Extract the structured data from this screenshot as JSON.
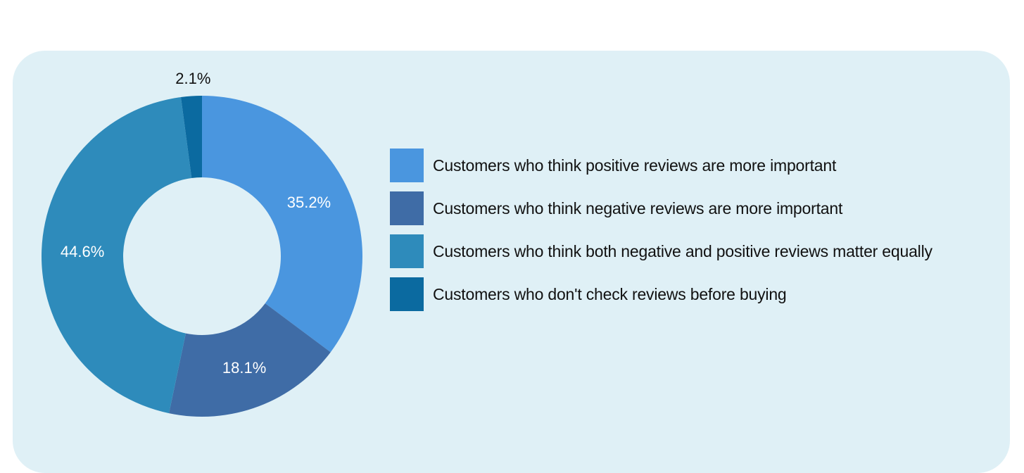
{
  "chart_data": {
    "type": "pie",
    "subtype": "donut",
    "title": "",
    "categories": [
      "Customers who think positive reviews are more important",
      "Customers who think negative reviews are more important",
      "Customers who think both negative and positive reviews matter equally",
      "Customers who don't check reviews before buying"
    ],
    "values": [
      35.2,
      18.1,
      44.6,
      2.1
    ],
    "labels": [
      "35.2%",
      "18.1%",
      "44.6%",
      "2.1%"
    ],
    "colors": [
      "#4a96df",
      "#3f6ca6",
      "#2e8bbb",
      "#0b6aa0"
    ],
    "legend_position": "right",
    "start_angle": "12 o'clock, clockwise"
  },
  "style": {
    "panel_background": "#dff0f6",
    "label_inside_color": "#ffffff",
    "label_outside_color": "#111111"
  },
  "legend": {
    "items": [
      {
        "label": "Customers who think positive reviews are more important",
        "color": "#4a96df"
      },
      {
        "label": "Customers who think negative reviews are more important",
        "color": "#3f6ca6"
      },
      {
        "label": "Customers who think both negative and positive reviews matter equally",
        "color": "#2e8bbb"
      },
      {
        "label": "Customers who don't check reviews before buying",
        "color": "#0b6aa0"
      }
    ]
  }
}
